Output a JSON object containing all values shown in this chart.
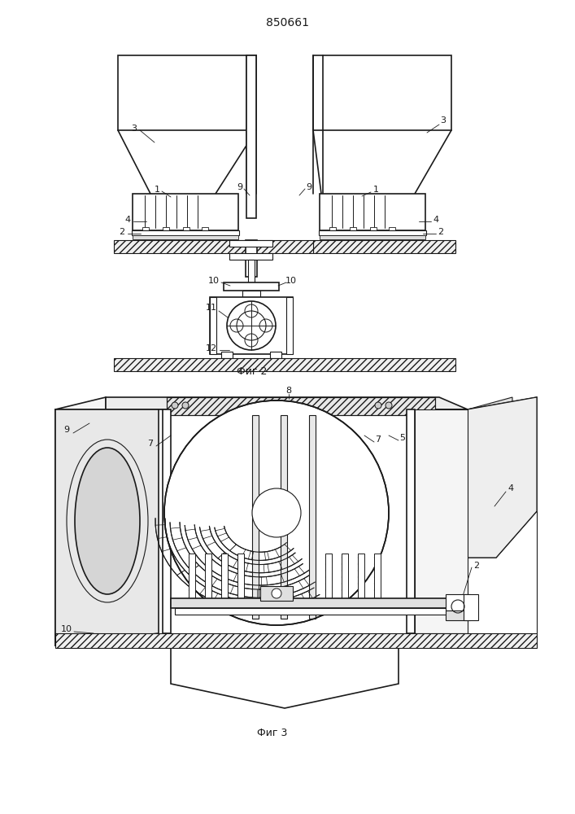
{
  "title": "850661",
  "fig2_label": "Фиг 2",
  "fig3_label": "Фиг 3",
  "bg_color": "#ffffff",
  "line_color": "#1a1a1a",
  "title_fontsize": 10,
  "label_fontsize": 8
}
